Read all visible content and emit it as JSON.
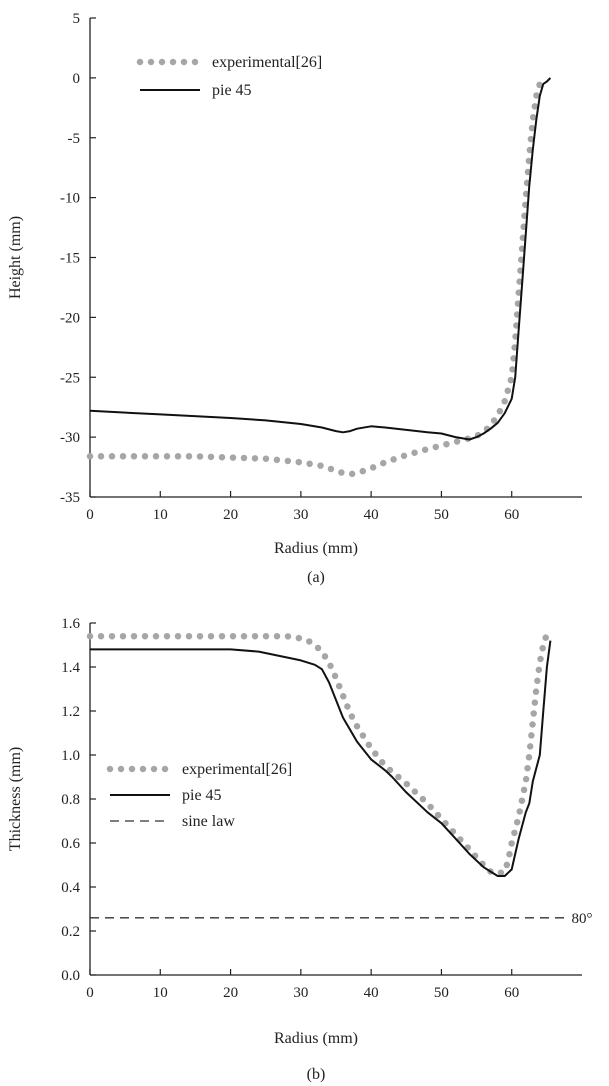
{
  "figure": {
    "panels": [
      {
        "label": "(a)"
      },
      {
        "label": "(b)"
      }
    ]
  },
  "styles": {
    "experimental_color": "#a6a6a6",
    "model_color": "#111111",
    "sine_color": "#333333",
    "axis_color": "#222222"
  },
  "chart_data": [
    {
      "type": "line",
      "panel": "(a)",
      "xlabel": "Radius (mm)",
      "ylabel": "Height (mm)",
      "xlim": [
        0,
        70
      ],
      "ylim": [
        -35,
        5
      ],
      "xticks": [
        0,
        10,
        20,
        30,
        40,
        50,
        60
      ],
      "yticks": [
        5,
        0,
        -5,
        -10,
        -15,
        -20,
        -25,
        -30,
        -35
      ],
      "grid": false,
      "legend": "top-left",
      "series": [
        {
          "name": "experimental[26]",
          "style": "dotted",
          "x": [
            0,
            5,
            10,
            15,
            20,
            25,
            30,
            33,
            35,
            36,
            37,
            38,
            40,
            42,
            45,
            48,
            50,
            52,
            54,
            55,
            56,
            57,
            58,
            59,
            60,
            60.5,
            61,
            61.5,
            62,
            62.5,
            63,
            63.5,
            64,
            64.5
          ],
          "y": [
            -31.6,
            -31.6,
            -31.6,
            -31.6,
            -31.7,
            -31.8,
            -32.1,
            -32.4,
            -32.8,
            -33.0,
            -33.1,
            -33.0,
            -32.6,
            -32.1,
            -31.5,
            -31.0,
            -30.7,
            -30.4,
            -30.1,
            -29.9,
            -29.6,
            -29.0,
            -28.2,
            -27.0,
            -25.0,
            -22.0,
            -18.0,
            -14.0,
            -10.0,
            -6.5,
            -3.5,
            -1.5,
            -0.5,
            0.0
          ]
        },
        {
          "name": "pie 45",
          "style": "solid",
          "x": [
            0,
            10,
            20,
            25,
            30,
            33,
            35,
            36,
            37,
            38,
            40,
            42,
            45,
            48,
            50,
            52,
            54,
            55,
            56,
            57,
            58,
            59,
            60,
            60.5,
            61,
            61.5,
            62,
            62.5,
            63,
            63.5,
            64,
            64.5,
            65,
            65.5
          ],
          "y": [
            -27.8,
            -28.1,
            -28.4,
            -28.6,
            -28.9,
            -29.2,
            -29.5,
            -29.6,
            -29.5,
            -29.3,
            -29.1,
            -29.2,
            -29.4,
            -29.6,
            -29.7,
            -30.0,
            -30.2,
            -30.0,
            -29.7,
            -29.3,
            -28.8,
            -28.0,
            -26.8,
            -25.0,
            -21.0,
            -17.0,
            -13.0,
            -9.0,
            -6.0,
            -3.5,
            -1.5,
            -0.5,
            -0.3,
            0.0
          ]
        }
      ]
    },
    {
      "type": "line",
      "panel": "(b)",
      "xlabel": "Radius (mm)",
      "ylabel": "Thickness (mm)",
      "xlim": [
        0,
        70
      ],
      "ylim": [
        0.0,
        1.6
      ],
      "xticks": [
        0,
        10,
        20,
        30,
        40,
        50,
        60
      ],
      "yticks": [
        1.6,
        1.4,
        1.2,
        1.0,
        0.8,
        0.6,
        0.4,
        0.2,
        0.0
      ],
      "grid": false,
      "legend": "center-left",
      "series": [
        {
          "name": "experimental[26]",
          "style": "dotted",
          "x": [
            0,
            5,
            10,
            15,
            20,
            25,
            28,
            30,
            31,
            32,
            33,
            34,
            35,
            36,
            37,
            38,
            40,
            42,
            45,
            48,
            50,
            52,
            54,
            56,
            57,
            58,
            59,
            59.5,
            60,
            61,
            62,
            62.5,
            63,
            63.5,
            64,
            64.5,
            65
          ],
          "y": [
            1.54,
            1.54,
            1.54,
            1.54,
            1.54,
            1.54,
            1.54,
            1.53,
            1.52,
            1.5,
            1.47,
            1.42,
            1.35,
            1.27,
            1.19,
            1.13,
            1.03,
            0.95,
            0.87,
            0.78,
            0.71,
            0.64,
            0.57,
            0.5,
            0.47,
            0.46,
            0.47,
            0.52,
            0.6,
            0.72,
            0.88,
            1.0,
            1.15,
            1.3,
            1.42,
            1.5,
            1.55
          ]
        },
        {
          "name": "pie 45",
          "style": "solid",
          "x": [
            0,
            5,
            10,
            15,
            20,
            24,
            27,
            30,
            32,
            33,
            34,
            35,
            36,
            38,
            40,
            42,
            43,
            45,
            48,
            50,
            52,
            54,
            56,
            57,
            58,
            59,
            60,
            61,
            62,
            62.5,
            63,
            64,
            64.5,
            65,
            65.5
          ],
          "y": [
            1.48,
            1.48,
            1.48,
            1.48,
            1.48,
            1.47,
            1.45,
            1.43,
            1.41,
            1.39,
            1.33,
            1.25,
            1.17,
            1.06,
            0.98,
            0.93,
            0.9,
            0.83,
            0.74,
            0.69,
            0.62,
            0.55,
            0.49,
            0.47,
            0.45,
            0.45,
            0.48,
            0.62,
            0.74,
            0.78,
            0.88,
            1.0,
            1.2,
            1.4,
            1.52
          ]
        },
        {
          "name": "sine law",
          "style": "dashed",
          "x": [
            0,
            68
          ],
          "y": [
            0.26,
            0.26
          ]
        }
      ],
      "annotations": [
        {
          "text": "80°",
          "x": 68.5,
          "y": 0.26
        }
      ]
    }
  ]
}
